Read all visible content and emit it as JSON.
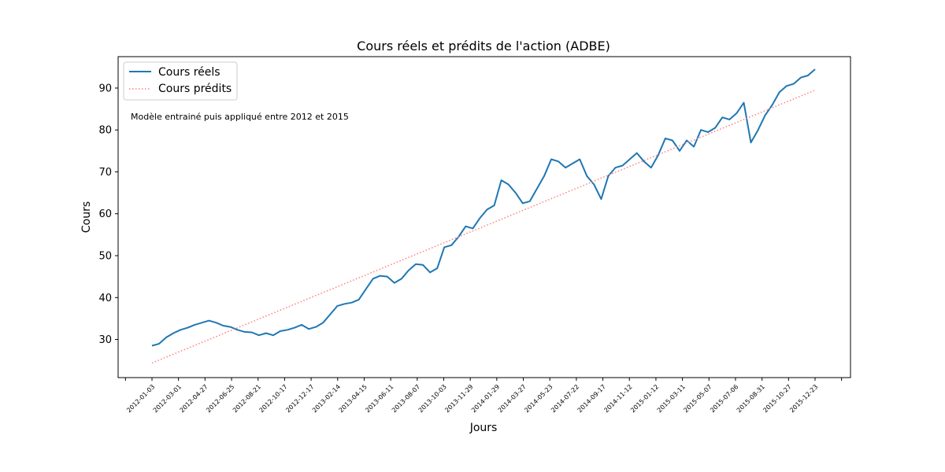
{
  "chart_data": {
    "type": "line",
    "title": "Cours réels et prédits de l'action (ADBE)",
    "xlabel": "Jours",
    "ylabel": "Cours",
    "annotation": "Modèle entrainé puis appliqué entre 2012 et 2015",
    "x_tick_labels": [
      "2012-01-03",
      "2012-03-01",
      "2012-04-27",
      "2012-06-25",
      "2012-08-21",
      "2012-10-17",
      "2012-12-17",
      "2013-02-14",
      "2013-04-15",
      "2013-06-11",
      "2013-08-07",
      "2013-10-03",
      "2013-11-29",
      "2014-01-29",
      "2014-03-27",
      "2014-05-23",
      "2014-07-22",
      "2014-09-17",
      "2014-11-12",
      "2015-01-12",
      "2015-03-11",
      "2015-05-07",
      "2015-07-06",
      "2015-08-31",
      "2015-10-27",
      "2015-12-23"
    ],
    "y_ticks": [
      30,
      40,
      50,
      60,
      70,
      80,
      90
    ],
    "ylim": [
      20.9,
      97.5
    ],
    "grid": false,
    "legend_position": "top-left",
    "series": [
      {
        "name": "Cours réels",
        "style": "solid",
        "color": "#1f77b4",
        "values": [
          28.5,
          29.0,
          30.5,
          31.5,
          32.3,
          32.8,
          33.5,
          34.0,
          34.5,
          34.0,
          33.3,
          33.0,
          32.3,
          31.8,
          31.7,
          31.0,
          31.5,
          31.0,
          32.0,
          32.3,
          32.8,
          33.5,
          32.5,
          33.0,
          34.0,
          36.0,
          38.0,
          38.5,
          38.8,
          39.5,
          42.0,
          44.5,
          45.2,
          45.0,
          43.5,
          44.5,
          46.5,
          48.0,
          47.8,
          46.0,
          47.0,
          52.0,
          52.5,
          54.5,
          57.0,
          56.5,
          59.0,
          61.0,
          62.0,
          68.0,
          67.0,
          65.0,
          62.5,
          63.0,
          66.0,
          69.0,
          73.0,
          72.5,
          71.0,
          72.0,
          73.0,
          69.0,
          67.0,
          63.5,
          69.0,
          71.0,
          71.5,
          73.0,
          74.5,
          72.5,
          71.0,
          74.0,
          78.0,
          77.5,
          75.0,
          77.5,
          76.0,
          80.0,
          79.5,
          80.5,
          83.0,
          82.5,
          84.0,
          86.5,
          77.0,
          80.0,
          83.5,
          86.0,
          89.0,
          90.5,
          91.0,
          92.5,
          93.0,
          94.5
        ]
      },
      {
        "name": "Cours prédits",
        "style": "dotted",
        "color": "#ff7f7f",
        "values": [
          24.4,
          89.5
        ]
      }
    ]
  }
}
